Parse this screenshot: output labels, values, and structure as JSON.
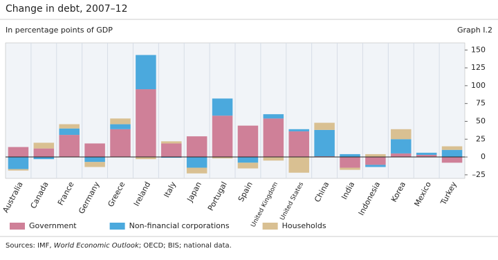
{
  "chart_data": {
    "type": "bar",
    "stacked": true,
    "title": "Change in debt, 2007–12",
    "subtitle": "In percentage points of GDP",
    "graph_label": "Graph I.2",
    "source": [
      "Sources: IMF, ",
      "World Economic Outlook",
      "; OECD; BIS; national data."
    ],
    "categories": [
      "Australia",
      "Canada",
      "France",
      "Germany",
      "Greece",
      "Ireland",
      "Italy",
      "Japan",
      "Portugal",
      "Spain",
      "United Kingdom",
      "United States",
      "China",
      "India",
      "Indonesia",
      "Korea",
      "Mexico",
      "Turkey"
    ],
    "series": [
      {
        "name": "Government",
        "color": "#cf8098",
        "values": [
          14,
          12,
          31,
          19,
          39,
          95,
          19,
          29,
          58,
          44,
          54,
          36,
          1,
          -15,
          -11,
          5,
          3,
          -8
        ]
      },
      {
        "name": "Non-financial corporations",
        "color": "#4ba9dd",
        "values": [
          -17,
          -3,
          9,
          -7,
          7,
          48,
          -1,
          -15,
          24,
          -8,
          6,
          3,
          37,
          4,
          -3,
          20,
          3,
          10
        ]
      },
      {
        "name": "Households",
        "color": "#d9c092",
        "values": [
          -2,
          8,
          6,
          -7,
          8,
          -3,
          3,
          -8,
          -2,
          -8,
          -5,
          -22,
          10,
          -3,
          4,
          14,
          0,
          5
        ]
      }
    ],
    "ylim": [
      -30,
      160
    ],
    "yticks": [
      {
        "value": -25,
        "label": "–25"
      },
      0,
      25,
      50,
      75,
      100,
      125,
      150
    ],
    "grid": false
  }
}
